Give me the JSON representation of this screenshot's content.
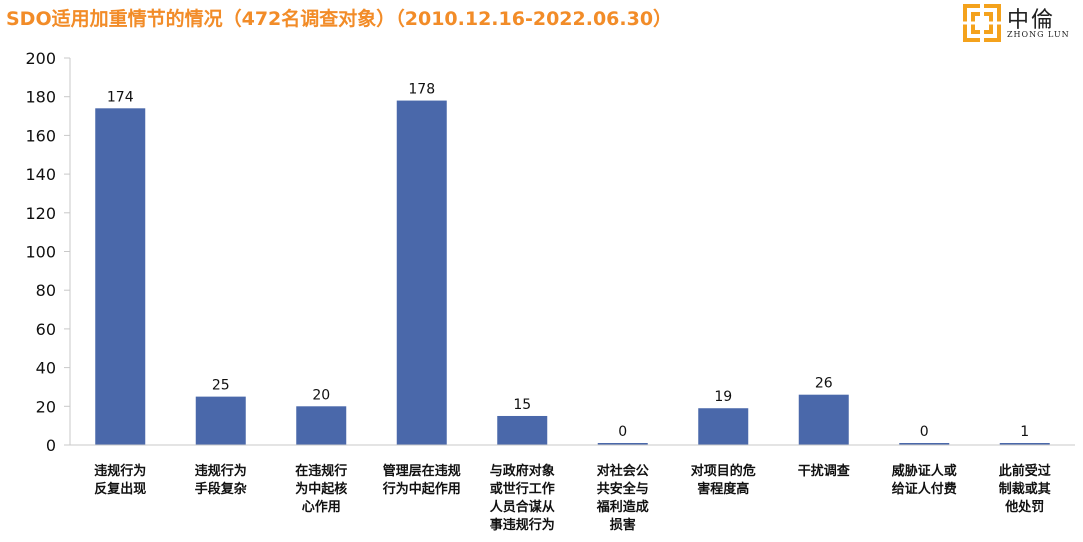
{
  "title": "SDO适用加重情节的情况（472名调查对象）（2010.12.16-2022.06.30）",
  "logo": {
    "cn": "中倫",
    "en": "ZHONG LUN",
    "icon": "zhonglun-logo-icon",
    "color": "#F4A21C"
  },
  "chart_data": {
    "type": "bar",
    "categories": [
      [
        "违规行为",
        "反复出现"
      ],
      [
        "违规行为",
        "手段复杂"
      ],
      [
        "在违规行",
        "为中起核",
        "心作用"
      ],
      [
        "管理层在违规",
        "行为中起作用"
      ],
      [
        "与政府对象",
        "或世行工作",
        "人员合谋从",
        "事违规行为"
      ],
      [
        "对社会公",
        "共安全与",
        "福利造成",
        "损害"
      ],
      [
        "对项目的危",
        "害程度高"
      ],
      [
        "干扰调查"
      ],
      [
        "威胁证人或",
        "给证人付费"
      ],
      [
        "此前受过",
        "制裁或其",
        "他处罚"
      ]
    ],
    "values": [
      174,
      25,
      20,
      178,
      15,
      0,
      19,
      26,
      0,
      1
    ],
    "ylim": [
      0,
      200
    ],
    "yticks": [
      0,
      20,
      40,
      60,
      80,
      100,
      120,
      140,
      160,
      180,
      200
    ],
    "bar_color": "#4A68AA",
    "axis_color": "#C8C8C8",
    "grid": false,
    "legend": "none"
  }
}
